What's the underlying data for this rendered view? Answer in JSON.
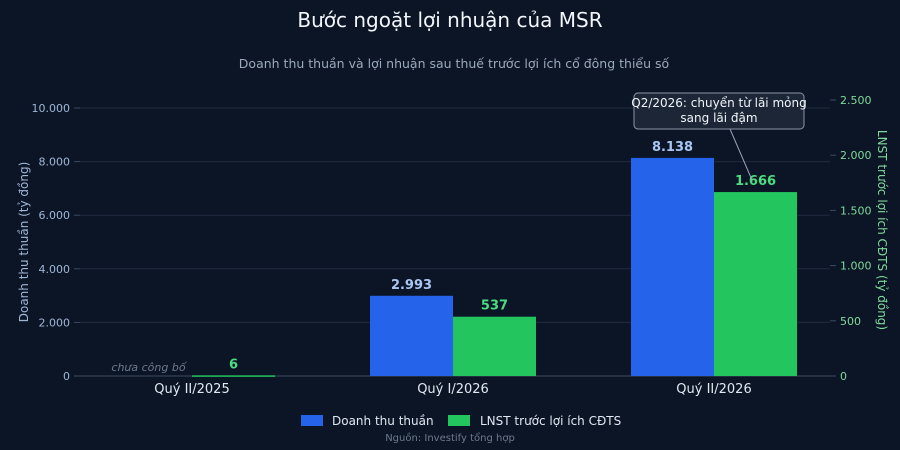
{
  "chart_data": {
    "type": "bar",
    "title": "Bước ngoặt lợi nhuận của MSR",
    "subtitle": "Doanh thu thuần và lợi nhuận sau thuế trước lợi ích cổ đông thiểu số",
    "categories": [
      "Quý II/2025",
      "Quý I/2026",
      "Quý II/2026"
    ],
    "series": [
      {
        "name": "Doanh thu thuần",
        "axis": "left",
        "color": "#2563eb",
        "values": [
          null,
          2993,
          8138
        ],
        "labels": [
          "",
          "2.993",
          "8.138"
        ]
      },
      {
        "name": "LNST trước lợi ích CĐTS",
        "axis": "right",
        "color": "#22c55e",
        "values": [
          6,
          537,
          1666
        ],
        "labels": [
          "6",
          "537",
          "1.666"
        ]
      }
    ],
    "y_left": {
      "label": "Doanh thu thuần (tỷ đồng)",
      "range": [
        0,
        10000
      ],
      "ticks": [
        0,
        2000,
        4000,
        6000,
        8000,
        10000
      ],
      "tick_labels": [
        "0",
        "2.000",
        "4.000",
        "6.000",
        "8.000",
        "10.000"
      ]
    },
    "y_right": {
      "label": "LNST trước lợi ích CĐTS (tỷ đồng)",
      "range": [
        0,
        2500
      ],
      "ticks": [
        0,
        500,
        1000,
        1500,
        2000,
        2500
      ],
      "tick_labels": [
        "0",
        "500",
        "1.000",
        "1.500",
        "2.000",
        "2.500"
      ]
    },
    "missing_note": "chưa công bố",
    "annotation": {
      "lines": [
        "Q2/2026: chuyển từ lãi mỏng",
        "sang lãi đậm"
      ],
      "target_category": "Quý II/2026",
      "target_series": "LNST trước lợi ích CĐTS"
    },
    "legend_position": "bottom",
    "grid": true
  },
  "source": "Nguồn: Investify tổng hợp",
  "colors": {
    "background": "#0c1526",
    "grid": "#1f2c40",
    "revenue": "#2563eb",
    "profit": "#22c55e"
  }
}
